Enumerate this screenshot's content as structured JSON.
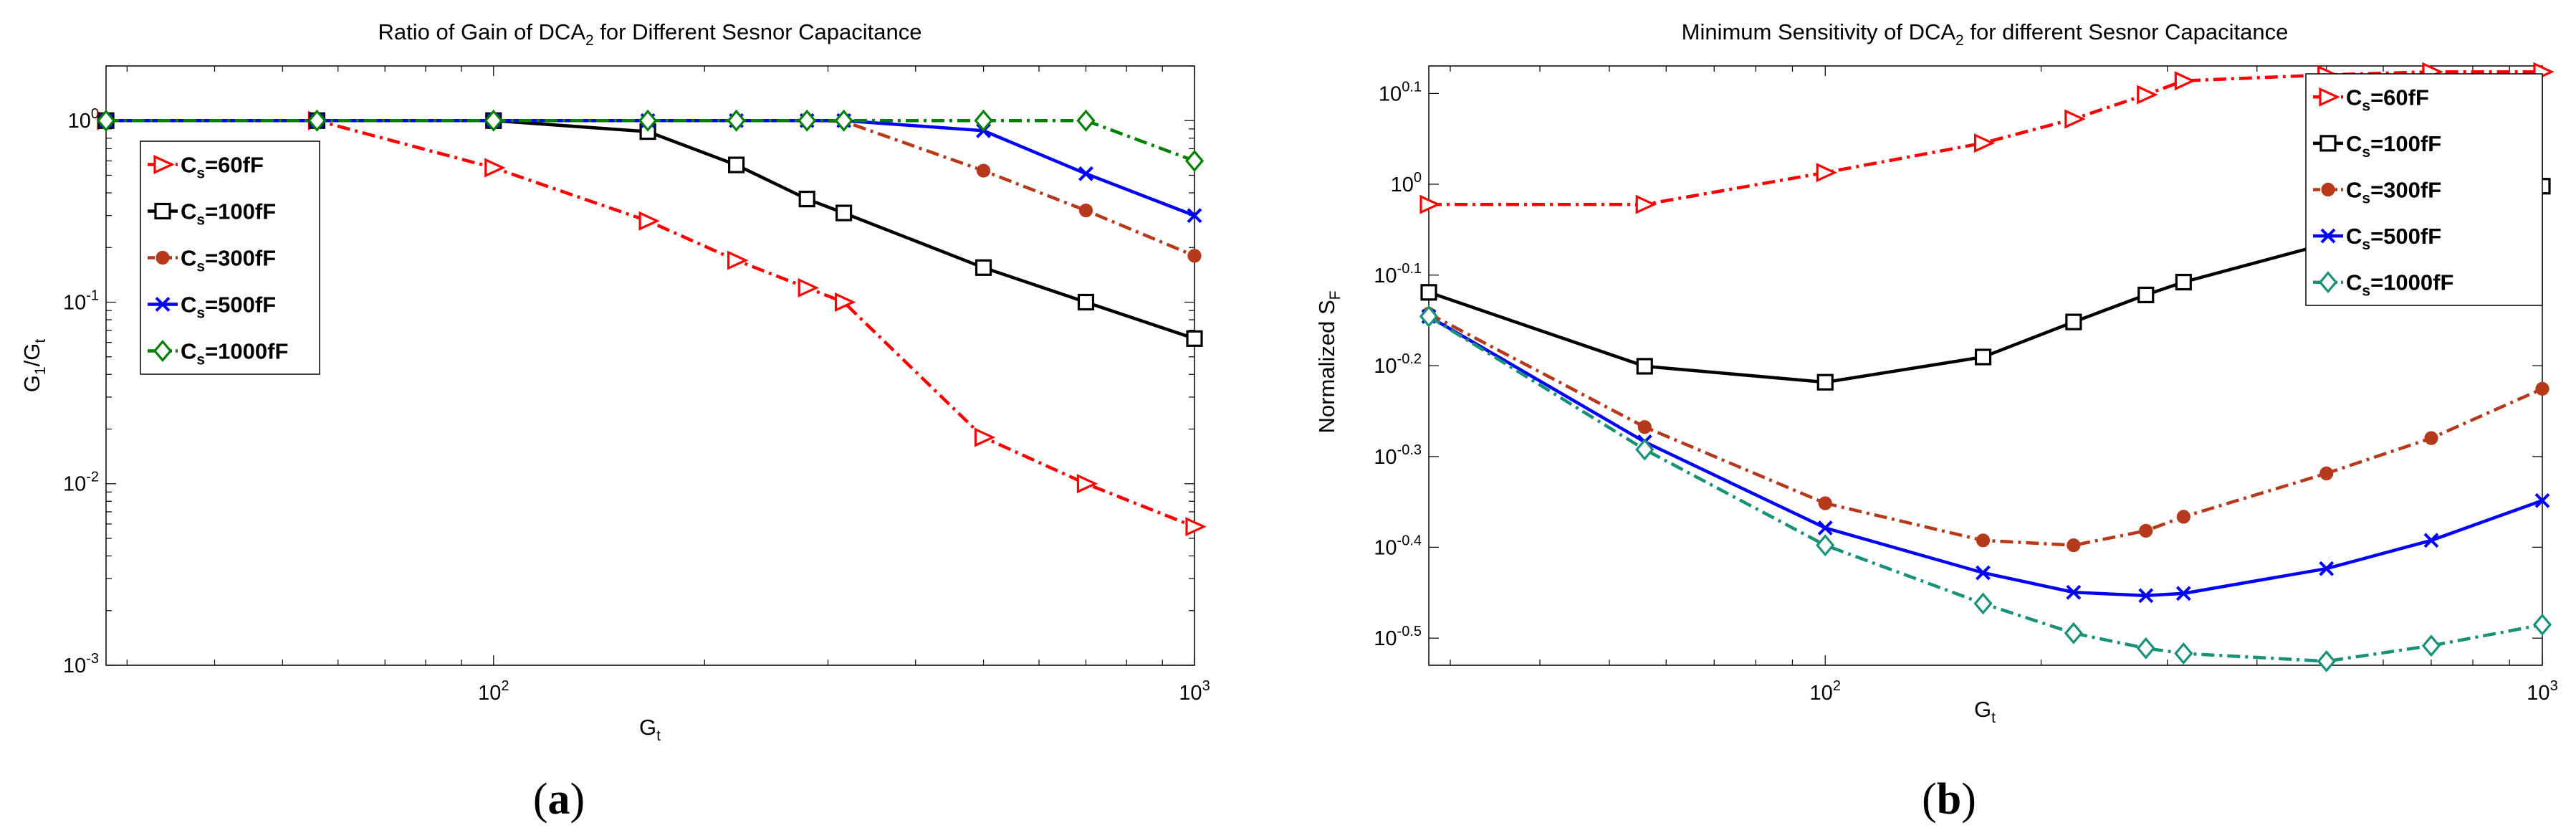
{
  "chart_data": [
    {
      "type": "line",
      "title": "Ratio of Gain of DCA",
      "title_sub": "2",
      "title_suffix": " for Different Sesnor Capacitance",
      "xlabel": "G",
      "xlabel_sub": "t",
      "ylabel": "G",
      "ylabel_sub1": "1",
      "ylabel_mid": "/G",
      "ylabel_sub2": "t",
      "xscale": "log",
      "yscale": "log",
      "xlim": [
        28,
        1000
      ],
      "ylim": [
        0.001,
        2
      ],
      "xticks": [
        100,
        1000
      ],
      "xtick_labels": [
        {
          "base": "10",
          "exp": "2"
        },
        {
          "base": "10",
          "exp": "3"
        }
      ],
      "yticks": [
        0.001,
        0.01,
        0.1,
        1
      ],
      "ytick_labels": [
        {
          "base": "10",
          "exp": "-3"
        },
        {
          "base": "10",
          "exp": "-2"
        },
        {
          "base": "10",
          "exp": "-1"
        },
        {
          "base": "10",
          "exp": "0"
        }
      ],
      "legend_position": "top-left",
      "panel_label": "(a)",
      "series": [
        {
          "name_base": "C",
          "name_sub": "s",
          "name_suffix": "=60fF",
          "color": "#ff0000",
          "dash": "18,7,4,7",
          "marker": "triangle-right",
          "x": [
            28,
            56,
            100,
            166,
            222,
            280,
            316,
            500,
            700,
            1000
          ],
          "y": [
            1.0,
            1.0,
            0.55,
            0.28,
            0.17,
            0.12,
            0.1,
            0.018,
            0.01,
            0.0058
          ]
        },
        {
          "name_base": "C",
          "name_sub": "s",
          "name_suffix": "=100fF",
          "color": "#000000",
          "dash": "",
          "marker": "square",
          "x": [
            28,
            56,
            100,
            166,
            222,
            280,
            316,
            500,
            700,
            1000
          ],
          "y": [
            1.0,
            1.0,
            1.0,
            0.87,
            0.57,
            0.37,
            0.31,
            0.155,
            0.1,
            0.063
          ]
        },
        {
          "name_base": "C",
          "name_sub": "s",
          "name_suffix": "=300fF",
          "color": "#b5391a",
          "dash": "18,7,4,7",
          "marker": "circle",
          "x": [
            28,
            56,
            100,
            166,
            222,
            280,
            316,
            500,
            700,
            1000
          ],
          "y": [
            1.0,
            1.0,
            1.0,
            1.0,
            1.0,
            1.0,
            0.99,
            0.53,
            0.32,
            0.18
          ]
        },
        {
          "name_base": "C",
          "name_sub": "s",
          "name_suffix": "=500fF",
          "color": "#0000ff",
          "dash": "",
          "marker": "x",
          "x": [
            28,
            56,
            100,
            166,
            222,
            280,
            316,
            500,
            700,
            1000
          ],
          "y": [
            1.0,
            1.0,
            1.0,
            1.0,
            1.0,
            1.0,
            1.0,
            0.88,
            0.51,
            0.3
          ]
        },
        {
          "name_base": "C",
          "name_sub": "s",
          "name_suffix": "=1000fF",
          "color": "#008000",
          "dash": "18,7,4,7",
          "marker": "diamond",
          "x": [
            28,
            56,
            100,
            166,
            222,
            280,
            316,
            500,
            700,
            1000
          ],
          "y": [
            1.0,
            1.0,
            1.0,
            1.0,
            1.0,
            1.0,
            1.0,
            1.0,
            1.0,
            0.6
          ]
        }
      ]
    },
    {
      "type": "line",
      "title": "Minimum Sensitivity of DCA",
      "title_sub": "2",
      "title_suffix": " for different Sesnor Capacitance",
      "xlabel": "G",
      "xlabel_sub": "t",
      "ylabel": "Normalized S",
      "ylabel_sub1": "F",
      "ylabel_mid": "",
      "ylabel_sub2": "",
      "xscale": "log",
      "yscale": "log",
      "xlim": [
        28,
        1000
      ],
      "ylim": [
        0.295,
        1.35
      ],
      "xticks": [
        100,
        1000
      ],
      "xtick_labels": [
        {
          "base": "10",
          "exp": "2"
        },
        {
          "base": "10",
          "exp": "3"
        }
      ],
      "yticks": [
        0.316,
        0.398,
        0.501,
        0.631,
        0.794,
        1.0,
        1.259
      ],
      "ytick_labels": [
        {
          "base": "10",
          "exp": "-0.5"
        },
        {
          "base": "10",
          "exp": "-0.4"
        },
        {
          "base": "10",
          "exp": "-0.3"
        },
        {
          "base": "10",
          "exp": "-0.2"
        },
        {
          "base": "10",
          "exp": "-0.1"
        },
        {
          "base": "10",
          "exp": "0"
        },
        {
          "base": "10",
          "exp": "0.1"
        }
      ],
      "legend_position": "top-right",
      "panel_label": "(b)",
      "series": [
        {
          "name_base": "C",
          "name_sub": "s",
          "name_suffix": "=60fF",
          "color": "#ff0000",
          "dash": "18,7,4,7",
          "marker": "triangle-right",
          "x": [
            28,
            56,
            100,
            166,
            222,
            280,
            316,
            500,
            700,
            1000
          ],
          "y": [
            0.95,
            0.95,
            1.03,
            1.11,
            1.18,
            1.255,
            1.3,
            1.32,
            1.33,
            1.33
          ]
        },
        {
          "name_base": "C",
          "name_sub": "s",
          "name_suffix": "=100fF",
          "color": "#000000",
          "dash": "",
          "marker": "square",
          "x": [
            28,
            56,
            100,
            166,
            222,
            280,
            316,
            500,
            700,
            1000
          ],
          "y": [
            0.76,
            0.63,
            0.605,
            0.645,
            0.705,
            0.755,
            0.78,
            0.86,
            0.905,
            0.995
          ]
        },
        {
          "name_base": "C",
          "name_sub": "s",
          "name_suffix": "=300fF",
          "color": "#b5391a",
          "dash": "18,7,4,7",
          "marker": "circle",
          "x": [
            28,
            56,
            100,
            166,
            222,
            280,
            316,
            500,
            700,
            1000
          ],
          "y": [
            0.72,
            0.54,
            0.445,
            0.405,
            0.4,
            0.415,
            0.43,
            0.48,
            0.525,
            0.595
          ]
        },
        {
          "name_base": "C",
          "name_sub": "s",
          "name_suffix": "=500fF",
          "color": "#0000ff",
          "dash": "",
          "marker": "x",
          "x": [
            28,
            56,
            100,
            166,
            222,
            280,
            316,
            500,
            700,
            1000
          ],
          "y": [
            0.715,
            0.52,
            0.418,
            0.373,
            0.355,
            0.352,
            0.354,
            0.377,
            0.405,
            0.448
          ]
        },
        {
          "name_base": "C",
          "name_sub": "s",
          "name_suffix": "=1000fF",
          "color": "#179177",
          "dash": "18,7,4,7",
          "marker": "diamond",
          "x": [
            28,
            56,
            100,
            166,
            222,
            280,
            316,
            500,
            700,
            1000
          ],
          "y": [
            0.715,
            0.51,
            0.4,
            0.345,
            0.32,
            0.308,
            0.304,
            0.298,
            0.31,
            0.327
          ]
        }
      ]
    }
  ]
}
